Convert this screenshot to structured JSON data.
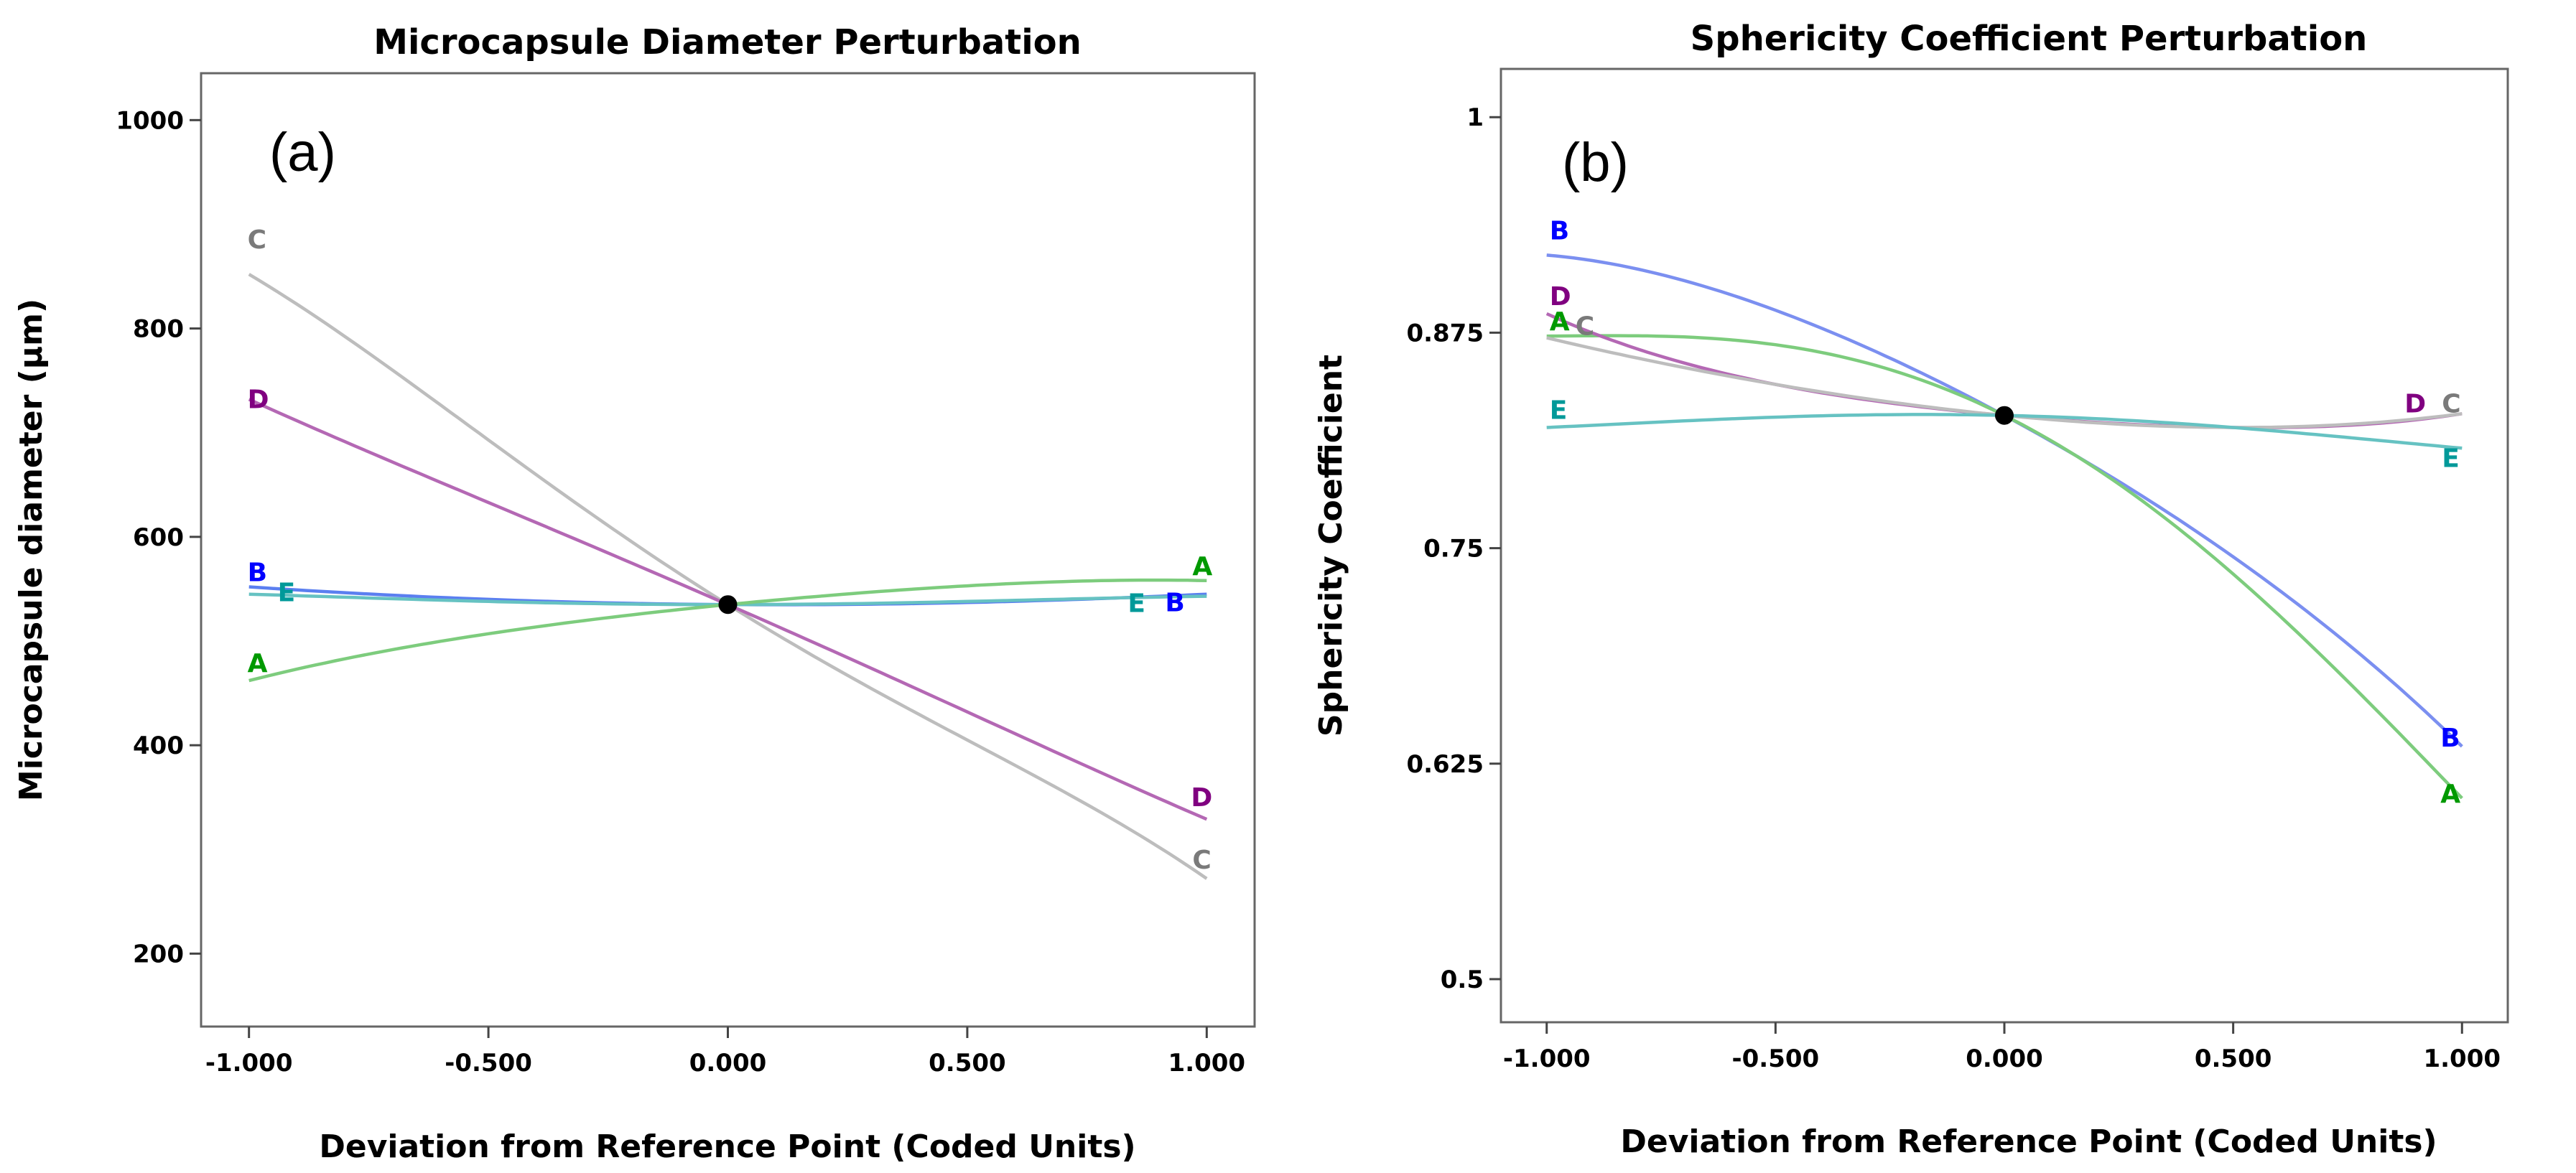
{
  "chart_data": [
    {
      "type": "line",
      "panel": "(a)",
      "title": "Microcapsule Diameter Perturbation",
      "xlabel": "Deviation from Reference Point (Coded Units)",
      "ylabel": "Microcapsule diameter (µm)",
      "xlim": [
        -1.1,
        1.1
      ],
      "ylim": [
        130,
        1045
      ],
      "xticks": [
        -1.0,
        -0.5,
        0.0,
        0.5,
        1.0
      ],
      "xtick_labels": [
        "-1.000",
        "-0.500",
        "0.000",
        "0.500",
        "1.000"
      ],
      "yticks": [
        200,
        400,
        600,
        800,
        1000
      ],
      "ytick_labels": [
        "200",
        "400",
        "600",
        "800",
        "1000"
      ],
      "reference_point": {
        "x": 0.0,
        "y": 535
      },
      "series": [
        {
          "name": "C",
          "color": "#bdbdbd",
          "label_color": "#7a7a7a",
          "x": [
            -1,
            -0.5,
            0,
            0.5,
            1
          ],
          "values": [
            852,
            693,
            535,
            405,
            272
          ]
        },
        {
          "name": "D",
          "color": "#b468b4",
          "label_color": "#800080",
          "x": [
            -1,
            -0.5,
            0,
            0.5,
            1
          ],
          "values": [
            732,
            633,
            535,
            432,
            329
          ]
        },
        {
          "name": "B",
          "color": "#5b7ff0",
          "label_color": "#0000ff",
          "x": [
            -1,
            -0.5,
            0,
            0.5,
            1
          ],
          "values": [
            552,
            540,
            535,
            537,
            545
          ]
        },
        {
          "name": "E",
          "color": "#66c2c2",
          "label_color": "#009999",
          "x": [
            -1,
            -0.5,
            0,
            0.5,
            1
          ],
          "values": [
            545,
            538,
            535,
            538,
            543
          ]
        },
        {
          "name": "A",
          "color": "#7dcc7d",
          "label_color": "#009900",
          "x": [
            -1,
            -0.5,
            0,
            0.5,
            1
          ],
          "values": [
            462,
            507,
            535,
            553,
            558
          ]
        }
      ],
      "curve_labels": [
        {
          "text": "C",
          "series": "C",
          "side": "left"
        },
        {
          "text": "C",
          "series": "C",
          "side": "right"
        },
        {
          "text": "D",
          "series": "D",
          "side": "left"
        },
        {
          "text": "D",
          "series": "D",
          "side": "right"
        },
        {
          "text": "B",
          "series": "B",
          "side": "left"
        },
        {
          "text": "B",
          "series": "B",
          "side": "right"
        },
        {
          "text": "E",
          "series": "E",
          "side": "left"
        },
        {
          "text": "E",
          "series": "E",
          "side": "right"
        },
        {
          "text": "A",
          "series": "A",
          "side": "left"
        },
        {
          "text": "A",
          "series": "A",
          "side": "right"
        }
      ]
    },
    {
      "type": "line",
      "panel": "(b)",
      "title": "Sphericity Coefficient Perturbation",
      "xlabel": "Deviation from Reference Point (Coded Units)",
      "ylabel": "Sphericity Coefficient",
      "xlim": [
        -1.1,
        1.1
      ],
      "ylim": [
        0.475,
        1.028
      ],
      "xticks": [
        -1.0,
        -0.5,
        0.0,
        0.5,
        1.0
      ],
      "xtick_labels": [
        "-1.000",
        "-0.500",
        "0.000",
        "0.500",
        "1.000"
      ],
      "yticks": [
        0.5,
        0.625,
        0.75,
        0.875,
        1.0
      ],
      "ytick_labels": [
        "0.5",
        "0.625",
        "0.75",
        "0.875",
        "1"
      ],
      "reference_point": {
        "x": 0.0,
        "y": 0.827
      },
      "series": [
        {
          "name": "B",
          "color": "#7b8ff0",
          "label_color": "#0000ff",
          "x": [
            -1,
            -0.5,
            0,
            0.5,
            1
          ],
          "values": [
            0.92,
            0.888,
            0.827,
            0.745,
            0.635
          ]
        },
        {
          "name": "A",
          "color": "#7dcc7d",
          "label_color": "#009900",
          "x": [
            -1,
            -0.5,
            0,
            0.5,
            1
          ],
          "values": [
            0.873,
            0.868,
            0.827,
            0.735,
            0.605
          ]
        },
        {
          "name": "D",
          "color": "#b468b4",
          "label_color": "#800080",
          "x": [
            -1,
            -0.5,
            0,
            0.5,
            1
          ],
          "values": [
            0.886,
            0.845,
            0.827,
            0.82,
            0.828
          ]
        },
        {
          "name": "C",
          "color": "#bdbdbd",
          "label_color": "#7a7a7a",
          "x": [
            -1,
            -0.5,
            0,
            0.5,
            1
          ],
          "values": [
            0.872,
            0.845,
            0.827,
            0.82,
            0.828
          ]
        },
        {
          "name": "E",
          "color": "#66c2c2",
          "label_color": "#009999",
          "x": [
            -1,
            -0.5,
            0,
            0.5,
            1
          ],
          "values": [
            0.82,
            0.826,
            0.827,
            0.82,
            0.808
          ]
        }
      ],
      "curve_labels": [
        {
          "text": "B",
          "series": "B",
          "side": "left"
        },
        {
          "text": "B",
          "series": "B",
          "side": "right"
        },
        {
          "text": "A",
          "series": "A",
          "side": "left"
        },
        {
          "text": "A",
          "series": "A",
          "side": "right"
        },
        {
          "text": "D",
          "series": "D",
          "side": "left"
        },
        {
          "text": "D",
          "series": "D",
          "side": "right"
        },
        {
          "text": "C",
          "series": "C",
          "side": "left"
        },
        {
          "text": "C",
          "series": "C",
          "side": "right"
        },
        {
          "text": "E",
          "series": "E",
          "side": "left"
        },
        {
          "text": "E",
          "series": "E",
          "side": "right"
        }
      ]
    }
  ]
}
